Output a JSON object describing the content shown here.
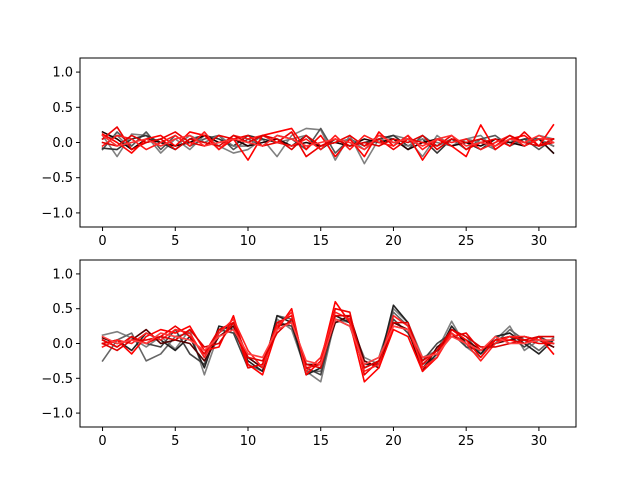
{
  "chart_data": [
    {
      "type": "line",
      "xlim": [
        -1.55,
        32.55
      ],
      "ylim": [
        -1.2,
        1.2
      ],
      "xticks": [
        0,
        5,
        10,
        15,
        20,
        25,
        30
      ],
      "yticks": [
        -1.0,
        -0.5,
        0.0,
        0.5,
        1.0
      ],
      "xtick_labels": [
        "0",
        "5",
        "10",
        "15",
        "20",
        "25",
        "30"
      ],
      "ytick_labels": [
        "−1.0",
        "−0.5",
        "0.0",
        "0.5",
        "1.0"
      ],
      "grid": false,
      "series": [
        {
          "color": "#808080",
          "values": [
            0.1,
            -0.2,
            0.12,
            0.1,
            -0.15,
            0.05,
            -0.1,
            0.1,
            -0.05,
            -0.15,
            -0.1,
            0.05,
            -0.2,
            0.1,
            0.2,
            0.18,
            -0.25,
            0.1,
            -0.3,
            0.05,
            0.1,
            0.05,
            -0.2,
            0.1,
            -0.05,
            0.05,
            0.1,
            -0.1,
            0.05,
            -0.05,
            0.1,
            0.05
          ]
        },
        {
          "color": "#555555",
          "values": [
            -0.1,
            0.15,
            -0.05,
            0.15,
            -0.1,
            0.1,
            -0.05,
            0.05,
            0.1,
            -0.1,
            0.05,
            -0.05,
            0.1,
            0.05,
            -0.1,
            0.2,
            -0.15,
            0.05,
            -0.05,
            0.1,
            0.05,
            -0.1,
            0.1,
            -0.05,
            0.05,
            -0.1,
            0.05,
            0.1,
            -0.05,
            0.05,
            -0.1,
            0.05
          ]
        },
        {
          "color": "#333333",
          "values": [
            -0.08,
            -0.1,
            0.05,
            0.1,
            0.0,
            -0.1,
            0.05,
            0.1,
            0.05,
            -0.05,
            0.1,
            0.05,
            0.0,
            -0.05,
            0.1,
            -0.1,
            0.05,
            -0.05,
            0.0,
            0.05,
            0.1,
            -0.05,
            0.05,
            -0.15,
            0.05,
            0.0,
            -0.1,
            0.05,
            0.0,
            0.05,
            0.05,
            -0.05
          ]
        },
        {
          "color": "#777777",
          "values": [
            0.05,
            0.1,
            -0.1,
            0.05,
            0.0,
            -0.05,
            0.1,
            0.0,
            0.1,
            -0.05,
            -0.05,
            0.1,
            0.0,
            0.05,
            0.1,
            -0.05,
            0.0,
            0.05,
            -0.1,
            0.05,
            0.0,
            -0.05,
            0.05,
            0.0,
            -0.05,
            0.05,
            0.0,
            -0.1,
            0.05,
            0.0,
            0.05,
            -0.05
          ]
        },
        {
          "color": "#220000",
          "values": [
            0.15,
            0.05,
            -0.1,
            0.05,
            0.0,
            -0.05,
            0.0,
            0.1,
            0.0,
            0.05,
            -0.05,
            0.0,
            0.05,
            -0.05,
            0.0,
            -0.05,
            0.0,
            -0.05,
            0.05,
            0.0,
            0.05,
            -0.1,
            0.0,
            0.05,
            -0.05,
            0.0,
            -0.05,
            0.05,
            0.0,
            -0.05,
            0.05,
            -0.15
          ]
        },
        {
          "color": "#ff0000",
          "values": [
            0.12,
            0.0,
            -0.15,
            0.05,
            0.1,
            -0.05,
            0.15,
            0.1,
            -0.1,
            0.05,
            -0.25,
            0.1,
            0.15,
            0.2,
            -0.1,
            0.1,
            -0.2,
            0.05,
            -0.2,
            0.15,
            -0.05,
            0.1,
            -0.25,
            0.05,
            -0.05,
            -0.2,
            0.25,
            -0.1,
            0.05,
            0.1,
            -0.05,
            0.25
          ]
        },
        {
          "color": "#ee0000",
          "values": [
            0.05,
            0.22,
            -0.1,
            0.0,
            0.05,
            0.15,
            0.0,
            -0.05,
            0.1,
            0.05,
            0.1,
            -0.05,
            0.0,
            0.15,
            -0.2,
            -0.05,
            0.0,
            0.1,
            -0.05,
            0.05,
            -0.1,
            0.05,
            0.0,
            -0.05,
            0.1,
            -0.1,
            0.0,
            0.05,
            -0.05,
            0.15,
            -0.05,
            0.0
          ]
        },
        {
          "color": "#ff1a1a",
          "values": [
            -0.05,
            0.1,
            0.05,
            -0.1,
            0.0,
            0.1,
            -0.05,
            0.15,
            -0.1,
            0.1,
            0.05,
            0.1,
            0.0,
            -0.05,
            0.05,
            -0.1,
            0.1,
            -0.1,
            0.1,
            0.0,
            -0.05,
            0.1,
            -0.1,
            0.05,
            0.0,
            0.05,
            -0.1,
            0.0,
            0.1,
            -0.05,
            0.05,
            0.05
          ]
        },
        {
          "color": "#dd0000",
          "values": [
            0.0,
            -0.05,
            0.1,
            0.0,
            0.05,
            -0.1,
            0.05,
            0.0,
            -0.05,
            0.1,
            0.0,
            0.1,
            0.05,
            -0.1,
            0.1,
            -0.05,
            0.05,
            -0.05,
            0.0,
            -0.05,
            0.05,
            0.0,
            0.1,
            -0.1,
            0.05,
            0.0,
            0.05,
            -0.05,
            0.1,
            0.0,
            -0.05,
            0.05
          ]
        },
        {
          "color": "#ff3030",
          "values": [
            0.1,
            -0.05,
            0.0,
            0.05,
            -0.05,
            0.05,
            0.1,
            -0.05,
            0.0,
            0.05,
            0.0,
            -0.05,
            0.1,
            0.05,
            -0.05,
            0.0,
            0.05,
            0.0,
            -0.1,
            0.1,
            0.0,
            0.05,
            -0.05,
            0.05,
            0.1,
            -0.05,
            0.0,
            -0.05,
            0.05,
            0.0,
            0.1,
            0.0
          ]
        }
      ]
    },
    {
      "type": "line",
      "xlim": [
        -1.55,
        32.55
      ],
      "ylim": [
        -1.2,
        1.2
      ],
      "xticks": [
        0,
        5,
        10,
        15,
        20,
        25,
        30
      ],
      "yticks": [
        -1.0,
        -0.5,
        0.0,
        0.5,
        1.0
      ],
      "xtick_labels": [
        "0",
        "5",
        "10",
        "15",
        "20",
        "25",
        "30"
      ],
      "ytick_labels": [
        "−1.0",
        "−0.5",
        "0.0",
        "0.5",
        "1.0"
      ],
      "grid": false,
      "series": [
        {
          "color": "#808080",
          "values": [
            0.12,
            0.17,
            0.08,
            -0.05,
            0.1,
            -0.08,
            0.2,
            -0.45,
            0.15,
            0.3,
            -0.2,
            -0.35,
            0.35,
            0.2,
            -0.4,
            -0.55,
            0.35,
            0.3,
            -0.2,
            -0.3,
            0.5,
            0.3,
            -0.2,
            -0.1,
            0.32,
            -0.05,
            -0.2,
            0.05,
            0.25,
            -0.1,
            0.05,
            -0.05
          ]
        },
        {
          "color": "#666666",
          "values": [
            -0.25,
            0.05,
            0.15,
            -0.25,
            -0.15,
            0.1,
            0.15,
            -0.2,
            0.2,
            0.25,
            -0.3,
            -0.4,
            0.4,
            0.35,
            -0.4,
            -0.4,
            0.3,
            0.35,
            -0.3,
            -0.2,
            0.45,
            0.25,
            -0.3,
            -0.2,
            0.2,
            0.1,
            -0.15,
            0.0,
            0.2,
            0.05,
            -0.1,
            0.08
          ]
        },
        {
          "color": "#444444",
          "values": [
            0.05,
            -0.05,
            0.1,
            0.0,
            -0.05,
            0.2,
            -0.15,
            -0.3,
            0.2,
            0.15,
            -0.35,
            -0.3,
            0.3,
            0.25,
            -0.35,
            -0.45,
            0.35,
            0.25,
            -0.35,
            -0.25,
            0.35,
            0.15,
            -0.25,
            0.0,
            0.15,
            -0.05,
            -0.1,
            0.05,
            0.1,
            -0.05,
            0.1,
            0.0
          ]
        },
        {
          "color": "#222222",
          "values": [
            0.0,
            0.05,
            -0.1,
            0.15,
            0.05,
            -0.1,
            0.1,
            -0.35,
            0.25,
            0.2,
            -0.25,
            -0.4,
            0.4,
            0.3,
            -0.45,
            -0.35,
            0.4,
            0.3,
            -0.3,
            -0.3,
            0.55,
            0.3,
            -0.35,
            -0.15,
            0.25,
            0.0,
            -0.15,
            0.1,
            0.15,
            0.0,
            -0.15,
            0.05
          ]
        },
        {
          "color": "#550000",
          "values": [
            0.08,
            0.0,
            0.05,
            0.2,
            0.0,
            0.05,
            0.0,
            -0.25,
            0.1,
            0.25,
            -0.2,
            -0.35,
            0.25,
            0.3,
            -0.3,
            -0.3,
            0.3,
            0.4,
            -0.25,
            -0.35,
            0.3,
            0.2,
            -0.4,
            -0.05,
            0.1,
            0.05,
            -0.1,
            0.0,
            0.05,
            0.1,
            0.05,
            -0.05
          ]
        },
        {
          "color": "#ff0000",
          "values": [
            0.0,
            0.05,
            -0.15,
            0.1,
            0.2,
            0.15,
            0.25,
            -0.1,
            -0.05,
            0.4,
            -0.3,
            -0.45,
            0.2,
            0.5,
            -0.45,
            -0.25,
            0.6,
            0.3,
            -0.55,
            -0.35,
            0.2,
            0.1,
            -0.4,
            -0.2,
            0.2,
            0.05,
            -0.2,
            0.05,
            0.05,
            0.0,
            0.1,
            -0.15
          ]
        },
        {
          "color": "#ee0000",
          "values": [
            0.05,
            -0.05,
            0.1,
            0.0,
            0.1,
            0.25,
            0.1,
            -0.15,
            0.2,
            0.3,
            -0.35,
            -0.3,
            0.3,
            0.4,
            -0.35,
            -0.3,
            0.5,
            0.45,
            -0.45,
            -0.25,
            0.25,
            0.2,
            -0.3,
            -0.1,
            0.1,
            0.15,
            -0.1,
            0.05,
            0.1,
            0.05,
            0.0,
            0.0
          ]
        },
        {
          "color": "#ff2020",
          "values": [
            -0.05,
            0.05,
            0.0,
            0.15,
            0.05,
            0.2,
            0.15,
            -0.2,
            0.15,
            0.35,
            -0.1,
            -0.35,
            0.25,
            0.45,
            -0.4,
            -0.2,
            0.45,
            0.35,
            -0.4,
            -0.3,
            0.4,
            0.25,
            -0.35,
            -0.2,
            0.15,
            0.0,
            -0.25,
            0.0,
            0.1,
            0.1,
            0.05,
            0.0
          ]
        },
        {
          "color": "#dd0000",
          "values": [
            0.0,
            -0.1,
            0.05,
            0.05,
            0.1,
            0.05,
            0.2,
            -0.05,
            0.0,
            0.3,
            -0.2,
            -0.25,
            0.15,
            0.35,
            -0.3,
            -0.35,
            0.4,
            0.4,
            -0.35,
            -0.25,
            0.3,
            0.3,
            -0.25,
            -0.1,
            0.2,
            0.1,
            -0.05,
            -0.05,
            0.0,
            0.05,
            0.1,
            0.1
          ]
        },
        {
          "color": "#ff4040",
          "values": [
            0.1,
            0.0,
            0.05,
            0.0,
            0.15,
            0.1,
            0.05,
            -0.1,
            0.1,
            0.2,
            -0.15,
            -0.2,
            0.2,
            0.3,
            -0.25,
            -0.3,
            0.35,
            0.25,
            -0.3,
            -0.2,
            0.25,
            0.2,
            -0.2,
            -0.15,
            0.1,
            0.0,
            -0.1,
            0.1,
            0.0,
            0.0,
            0.05,
            0.05
          ]
        }
      ]
    }
  ]
}
